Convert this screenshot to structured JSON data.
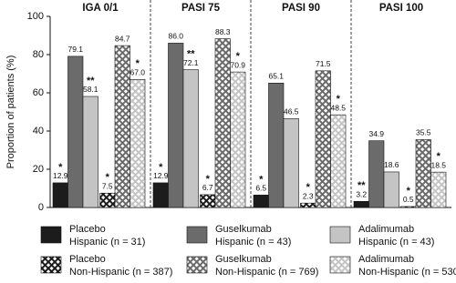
{
  "chart_data": {
    "type": "bar",
    "y_label": "Proportion of patients (%)",
    "categories": [
      "IGA 0/1",
      "PASI 75",
      "PASI 90",
      "PASI 100"
    ],
    "ylim": [
      0,
      100
    ],
    "yticks": [
      0,
      20,
      40,
      60,
      80,
      100
    ],
    "series": [
      {
        "name": "Placebo",
        "group": "Hispanic (n = 31)",
        "color": "#1c1c1c",
        "pattern": "solid",
        "values": [
          12.9,
          12.9,
          6.5,
          3.2
        ],
        "value_labels": [
          "12.9",
          "12.9",
          "6.5",
          "3.2"
        ],
        "markers": [
          "*",
          "*",
          "*",
          "**"
        ]
      },
      {
        "name": "Guselkumab",
        "group": "Hispanic (n = 43)",
        "color": "#6b6b6b",
        "pattern": "solid",
        "values": [
          79.1,
          86.0,
          65.1,
          34.9
        ],
        "value_labels": [
          "79.1",
          "86.0",
          "65.1",
          "34.9"
        ],
        "markers": [
          null,
          null,
          null,
          null
        ]
      },
      {
        "name": "Adalimumab",
        "group": "Hispanic (n = 43)",
        "color": "#c4c4c4",
        "pattern": "solid",
        "values": [
          58.1,
          72.1,
          46.5,
          18.6
        ],
        "value_labels": [
          "58.1",
          "72.1",
          "46.5",
          "18.6"
        ],
        "markers": [
          "**",
          "**",
          null,
          null
        ]
      },
      {
        "name": "Placebo",
        "group": "Non-Hispanic (n = 387)",
        "color": "#1c1c1c",
        "pattern": "crosshatch",
        "values": [
          7.5,
          6.7,
          2.3,
          0.5
        ],
        "value_labels": [
          "7.5",
          "6.7",
          "2.3",
          "0.5"
        ],
        "markers": [
          "*",
          "*",
          "*",
          "*"
        ]
      },
      {
        "name": "Guselkumab",
        "group": "Non-Hispanic (n = 769)",
        "color": "#6b6b6b",
        "pattern": "crosshatch",
        "values": [
          84.7,
          88.3,
          71.5,
          35.5
        ],
        "value_labels": [
          "84.7",
          "88.3",
          "71.5",
          "35.5"
        ],
        "markers": [
          null,
          null,
          null,
          null
        ]
      },
      {
        "name": "Adalimumab",
        "group": "Non-Hispanic (n = 530)",
        "color": "#c4c4c4",
        "pattern": "crosshatch",
        "values": [
          67.0,
          70.9,
          48.5,
          18.5
        ],
        "value_labels": [
          "67.0",
          "70.9",
          "48.5",
          "18.5"
        ],
        "markers": [
          "*",
          "*",
          "*",
          "*"
        ]
      }
    ]
  }
}
